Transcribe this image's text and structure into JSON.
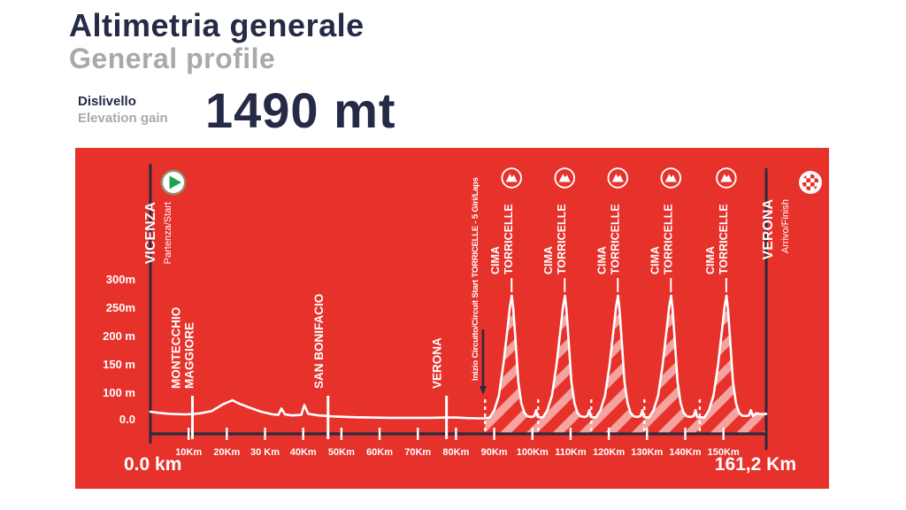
{
  "header": {
    "title": "Altimetria generale",
    "subtitle": "General profile",
    "gain_label_it": "Dislivello",
    "gain_label_en": "Elevation gain",
    "gain_value": "1490 mt"
  },
  "panel": {
    "start_label": "0.0 km",
    "end_label": "161,2 Km"
  },
  "colors": {
    "panel_bg": "#e6322b",
    "ink": "#252a45",
    "axis_dark": "#2b2b3d",
    "gray": "#a7a9ab",
    "white": "#ffffff",
    "hatch": "rgba(255,255,255,0.55)",
    "green": "#17a64b",
    "ring_olive": "#8f8f6d"
  },
  "chart_data": {
    "type": "area",
    "x_unit": "km",
    "y_unit": "m",
    "x_range": [
      0,
      161.2
    ],
    "grid": false,
    "y_ticks": [
      {
        "m": 300,
        "label": "300m"
      },
      {
        "m": 250,
        "label": "250m"
      },
      {
        "m": 200,
        "label": "200 m"
      },
      {
        "m": 150,
        "label": "150 m"
      },
      {
        "m": 100,
        "label": "100 m"
      },
      {
        "m": 0,
        "label": "0.0"
      }
    ],
    "x_ticks": [
      {
        "km": 10,
        "label": "10Km"
      },
      {
        "km": 20,
        "label": "20Km"
      },
      {
        "km": 30,
        "label": "30 Km"
      },
      {
        "km": 40,
        "label": "40Km"
      },
      {
        "km": 50,
        "label": "50Km"
      },
      {
        "km": 60,
        "label": "60Km"
      },
      {
        "km": 70,
        "label": "70Km"
      },
      {
        "km": 80,
        "label": "80Km"
      },
      {
        "km": 90,
        "label": "90Km"
      },
      {
        "km": 100,
        "label": "100Km"
      },
      {
        "km": 110,
        "label": "110Km"
      },
      {
        "km": 120,
        "label": "120Km"
      },
      {
        "km": 130,
        "label": "130Km"
      },
      {
        "km": 140,
        "label": "140Km"
      },
      {
        "km": 150,
        "label": "150Km"
      }
    ],
    "profile": [
      [
        0,
        30
      ],
      [
        2,
        26
      ],
      [
        5,
        22
      ],
      [
        9,
        20
      ],
      [
        11,
        21
      ],
      [
        13,
        24
      ],
      [
        16,
        32
      ],
      [
        19,
        58
      ],
      [
        21.5,
        73
      ],
      [
        23,
        62
      ],
      [
        26,
        45
      ],
      [
        29,
        30
      ],
      [
        32,
        20
      ],
      [
        33.5,
        18
      ],
      [
        34.3,
        42
      ],
      [
        35.2,
        20
      ],
      [
        37,
        16
      ],
      [
        39.5,
        18
      ],
      [
        40.3,
        55
      ],
      [
        41.3,
        22
      ],
      [
        44,
        16
      ],
      [
        47,
        13
      ],
      [
        50,
        11
      ],
      [
        54,
        9
      ],
      [
        58,
        8
      ],
      [
        63,
        7
      ],
      [
        68,
        7
      ],
      [
        73,
        7
      ],
      [
        77.5,
        8
      ],
      [
        80,
        8
      ],
      [
        83,
        6
      ],
      [
        86,
        5
      ],
      [
        87.6,
        5
      ],
      [
        88.8,
        8
      ],
      [
        90,
        35
      ],
      [
        91.2,
        90
      ],
      [
        92.4,
        150
      ],
      [
        93.5,
        215
      ],
      [
        94.1,
        252
      ],
      [
        94.6,
        272
      ],
      [
        95,
        248
      ],
      [
        95.6,
        190
      ],
      [
        96.3,
        120
      ],
      [
        97.1,
        62
      ],
      [
        97.9,
        26
      ],
      [
        98.7,
        13
      ],
      [
        99.7,
        10
      ],
      [
        100.5,
        14
      ],
      [
        101,
        36
      ],
      [
        101.4,
        10
      ],
      [
        102.7,
        8
      ],
      [
        103.9,
        35
      ],
      [
        105.1,
        90
      ],
      [
        106.3,
        150
      ],
      [
        107.4,
        215
      ],
      [
        108,
        252
      ],
      [
        108.5,
        272
      ],
      [
        108.9,
        248
      ],
      [
        109.5,
        190
      ],
      [
        110.2,
        120
      ],
      [
        111,
        62
      ],
      [
        111.8,
        26
      ],
      [
        112.6,
        13
      ],
      [
        113.6,
        10
      ],
      [
        114.4,
        14
      ],
      [
        114.9,
        36
      ],
      [
        115.3,
        10
      ],
      [
        116.6,
        8
      ],
      [
        117.8,
        35
      ],
      [
        119,
        90
      ],
      [
        120.2,
        150
      ],
      [
        121.3,
        215
      ],
      [
        121.9,
        252
      ],
      [
        122.4,
        272
      ],
      [
        122.8,
        248
      ],
      [
        123.4,
        190
      ],
      [
        124.1,
        120
      ],
      [
        124.9,
        62
      ],
      [
        125.7,
        26
      ],
      [
        126.5,
        13
      ],
      [
        127.5,
        10
      ],
      [
        128.3,
        14
      ],
      [
        128.8,
        36
      ],
      [
        129.2,
        10
      ],
      [
        130.5,
        8
      ],
      [
        131.7,
        35
      ],
      [
        132.9,
        90
      ],
      [
        134.1,
        150
      ],
      [
        135.2,
        215
      ],
      [
        135.8,
        252
      ],
      [
        136.3,
        272
      ],
      [
        136.7,
        248
      ],
      [
        137.3,
        190
      ],
      [
        138,
        120
      ],
      [
        138.8,
        62
      ],
      [
        139.6,
        26
      ],
      [
        140.4,
        13
      ],
      [
        141.4,
        10
      ],
      [
        142.2,
        14
      ],
      [
        142.7,
        36
      ],
      [
        143.1,
        10
      ],
      [
        145,
        8
      ],
      [
        146.2,
        35
      ],
      [
        147.4,
        90
      ],
      [
        148.6,
        150
      ],
      [
        149.7,
        215
      ],
      [
        150.3,
        252
      ],
      [
        150.8,
        272
      ],
      [
        151.2,
        248
      ],
      [
        151.8,
        190
      ],
      [
        152.5,
        120
      ],
      [
        153.3,
        62
      ],
      [
        154.1,
        26
      ],
      [
        154.9,
        15
      ],
      [
        155.9,
        14
      ],
      [
        156.7,
        16
      ],
      [
        157.2,
        36
      ],
      [
        157.7,
        14
      ],
      [
        158.6,
        24
      ],
      [
        159.8,
        21
      ],
      [
        161.2,
        22
      ]
    ],
    "circuit": {
      "label": "Inizio Circuito/Circuit Start TORRICELLE - 5 Giri/Laps",
      "start_km": 87.6,
      "laps": 5,
      "lap_boundaries_km": [
        87.6,
        101.5,
        115.4,
        129.3,
        143.8
      ]
    },
    "peaks": [
      {
        "km": 94.55,
        "lines": [
          "CIMA",
          "TORRICELLE"
        ]
      },
      {
        "km": 108.45,
        "lines": [
          "CIMA",
          "TORRICELLE"
        ]
      },
      {
        "km": 122.35,
        "lines": [
          "CIMA",
          "TORRICELLE"
        ]
      },
      {
        "km": 136.25,
        "lines": [
          "CIMA",
          "TORRICELLE"
        ]
      },
      {
        "km": 150.75,
        "lines": [
          "CIMA",
          "TORRICELLE"
        ]
      }
    ],
    "landmarks": [
      {
        "kind": "start",
        "km": 0,
        "name": "VICENZA",
        "sub": "Partenza/Start"
      },
      {
        "kind": "town",
        "km": 11,
        "lines": [
          "MONTECCHIO",
          "MAGGIORE"
        ]
      },
      {
        "kind": "town",
        "km": 46.5,
        "lines": [
          "SAN BONIFACIO"
        ]
      },
      {
        "kind": "town",
        "km": 77.5,
        "lines": [
          "VERONA"
        ]
      },
      {
        "kind": "finish",
        "km": 161.2,
        "name": "VERONA",
        "sub": "Arrivo/Finish"
      }
    ]
  }
}
